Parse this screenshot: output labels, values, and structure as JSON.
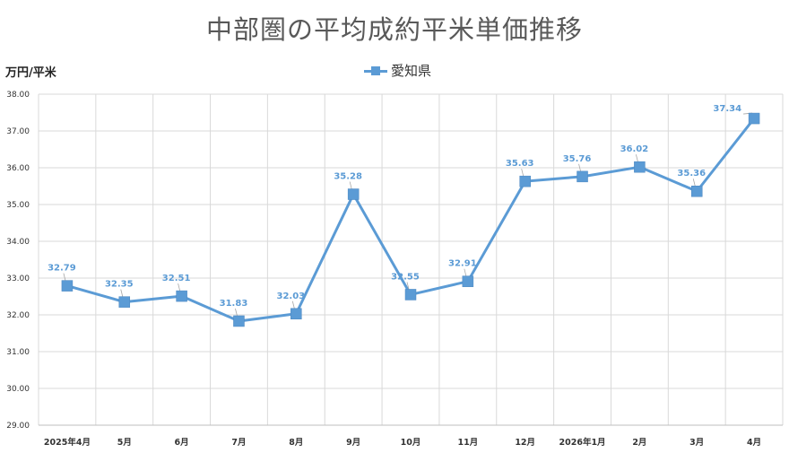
{
  "chart_data": {
    "type": "line",
    "title": "中部圏の平均成約平米単価推移",
    "ylabel": "万円/平米",
    "xlabel": "",
    "categories": [
      "2025年4月",
      "5月",
      "6月",
      "7月",
      "8月",
      "9月",
      "10月",
      "11月",
      "12月",
      "2026年1月",
      "2月",
      "3月",
      "4月"
    ],
    "series": [
      {
        "name": "愛知県",
        "values": [
          32.79,
          32.35,
          32.51,
          31.83,
          32.03,
          35.28,
          32.55,
          32.91,
          35.63,
          35.76,
          36.02,
          35.36,
          37.34
        ],
        "labels": [
          "32.79",
          "32.35",
          "32.51",
          "31.83",
          "32.03",
          "35.28",
          "32.55",
          "32.91",
          "35.63",
          "35.76",
          "36.02",
          "35.36",
          "37.34"
        ]
      }
    ],
    "ylim": [
      29,
      38
    ],
    "yticks": [
      "29.00",
      "30.00",
      "31.00",
      "32.00",
      "33.00",
      "34.00",
      "35.00",
      "36.00",
      "37.00",
      "38.00"
    ],
    "grid": true,
    "legend": "top-center",
    "colors": {
      "series": "#5b9bd5",
      "grid": "#d9d9d9",
      "title": "#595959"
    }
  }
}
